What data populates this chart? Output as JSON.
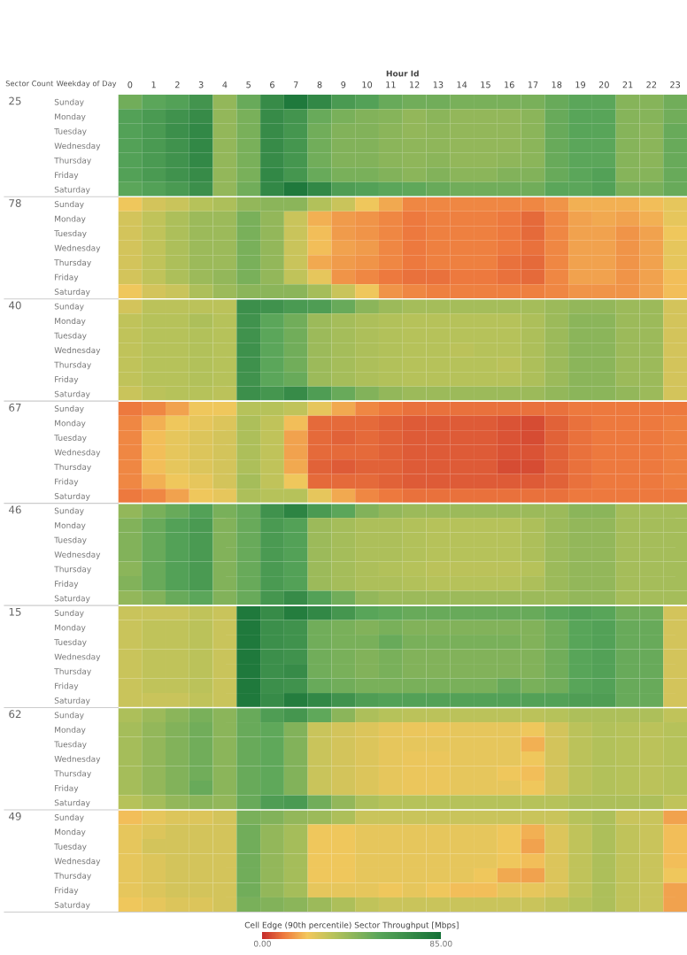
{
  "chart_data": {
    "type": "heatmap",
    "xlabel": "Hour Id",
    "ylabel": "Weekday of Day",
    "y2label": "Sector Count",
    "clabel": "Cell Edge (90th percentile) Sector Throughput [Mbps]",
    "clim": [
      0,
      85
    ],
    "cticks": [
      {
        "value": 0,
        "label": "0.00"
      },
      {
        "value": 85,
        "label": "85.00"
      }
    ],
    "categories": [
      "0",
      "1",
      "2",
      "3",
      "4",
      "5",
      "6",
      "7",
      "8",
      "9",
      "10",
      "11",
      "12",
      "13",
      "14",
      "15",
      "16",
      "17",
      "18",
      "19",
      "20",
      "21",
      "22",
      "23"
    ],
    "y_categories": [
      "Sunday",
      "Monday",
      "Tuesday",
      "Wednesday",
      "Thursday",
      "Friday",
      "Saturday",
      "Sunday",
      "Monday",
      "Tuesday",
      "Wednesday",
      "Thursday",
      "Friday",
      "Saturday",
      "Sunday",
      "Monday",
      "Tuesday",
      "Wednesday",
      "Thursday",
      "Friday",
      "Saturday",
      "Sunday",
      "Monday",
      "Tuesday",
      "Wednesday",
      "Thursday",
      "Friday",
      "Saturday",
      "Sunday",
      "Monday",
      "Tuesday",
      "Wednesday",
      "Thursday",
      "Friday",
      "Saturday",
      "Sunday",
      "Monday",
      "Tuesday",
      "Wednesday",
      "Thursday",
      "Friday",
      "Saturday",
      "Sunday",
      "Monday",
      "Tuesday",
      "Wednesday",
      "Thursday",
      "Friday",
      "Saturday",
      "Sunday",
      "Monday",
      "Tuesday",
      "Wednesday",
      "Thursday",
      "Friday",
      "Saturday"
    ],
    "y2_categories": [
      "25",
      null,
      null,
      null,
      null,
      null,
      null,
      "78",
      null,
      null,
      null,
      null,
      null,
      null,
      "40",
      null,
      null,
      null,
      null,
      null,
      null,
      "67",
      null,
      null,
      null,
      null,
      null,
      null,
      "46",
      null,
      null,
      null,
      null,
      null,
      null,
      "15",
      null,
      null,
      null,
      null,
      null,
      null,
      "62",
      null,
      null,
      null,
      null,
      null,
      null,
      "49",
      null,
      null,
      null,
      null,
      null,
      null
    ],
    "cells": [
      [
        50,
        55,
        58,
        65,
        42,
        52,
        70,
        80,
        72,
        62,
        58,
        52,
        50,
        50,
        48,
        48,
        48,
        48,
        52,
        55,
        55,
        45,
        45,
        50
      ],
      [
        58,
        62,
        66,
        70,
        42,
        48,
        70,
        65,
        52,
        48,
        46,
        45,
        42,
        44,
        42,
        42,
        42,
        44,
        52,
        56,
        56,
        45,
        45,
        50
      ],
      [
        58,
        62,
        68,
        72,
        42,
        48,
        70,
        64,
        50,
        46,
        46,
        44,
        42,
        43,
        42,
        42,
        42,
        44,
        52,
        56,
        56,
        45,
        44,
        52
      ],
      [
        58,
        62,
        66,
        72,
        42,
        48,
        70,
        64,
        50,
        46,
        46,
        44,
        43,
        43,
        42,
        42,
        42,
        44,
        52,
        55,
        55,
        45,
        44,
        52
      ],
      [
        58,
        62,
        66,
        72,
        42,
        48,
        70,
        64,
        50,
        46,
        46,
        44,
        43,
        44,
        42,
        42,
        43,
        44,
        52,
        55,
        55,
        45,
        44,
        52
      ],
      [
        58,
        62,
        66,
        70,
        42,
        48,
        72,
        64,
        52,
        48,
        48,
        46,
        44,
        46,
        44,
        44,
        46,
        46,
        52,
        55,
        58,
        45,
        45,
        52
      ],
      [
        55,
        58,
        62,
        68,
        42,
        50,
        72,
        80,
        72,
        60,
        58,
        55,
        54,
        52,
        50,
        50,
        50,
        50,
        55,
        55,
        58,
        48,
        48,
        52
      ],
      [
        22,
        28,
        30,
        34,
        36,
        42,
        44,
        44,
        35,
        30,
        22,
        17,
        12,
        12,
        12,
        12,
        12,
        12,
        14,
        18,
        18,
        18,
        20,
        24
      ],
      [
        28,
        32,
        36,
        40,
        40,
        48,
        42,
        30,
        18,
        15,
        14,
        12,
        10,
        11,
        11,
        11,
        10,
        8,
        12,
        16,
        17,
        16,
        18,
        24
      ],
      [
        28,
        32,
        36,
        40,
        40,
        48,
        42,
        30,
        20,
        15,
        14,
        12,
        10,
        11,
        11,
        11,
        10,
        8,
        12,
        16,
        16,
        14,
        16,
        22
      ],
      [
        28,
        32,
        36,
        40,
        40,
        48,
        42,
        30,
        20,
        16,
        15,
        12,
        10,
        11,
        11,
        11,
        10,
        9,
        12,
        16,
        16,
        14,
        16,
        24
      ],
      [
        28,
        32,
        36,
        40,
        40,
        48,
        42,
        30,
        17,
        15,
        14,
        12,
        10,
        11,
        11,
        11,
        9,
        8,
        12,
        16,
        16,
        14,
        16,
        24
      ],
      [
        28,
        32,
        36,
        40,
        42,
        48,
        42,
        32,
        24,
        14,
        12,
        10,
        9,
        9,
        10,
        10,
        9,
        8,
        12,
        16,
        16,
        14,
        16,
        20
      ],
      [
        22,
        28,
        30,
        36,
        40,
        44,
        44,
        44,
        38,
        30,
        22,
        14,
        12,
        11,
        11,
        11,
        11,
        11,
        12,
        14,
        14,
        14,
        16,
        20
      ],
      [
        28,
        33,
        33,
        33,
        33,
        68,
        66,
        62,
        60,
        52,
        44,
        40,
        38,
        38,
        38,
        38,
        38,
        38,
        40,
        42,
        42,
        40,
        40,
        28
      ],
      [
        32,
        34,
        34,
        36,
        34,
        66,
        55,
        50,
        40,
        38,
        36,
        35,
        34,
        34,
        34,
        34,
        34,
        36,
        40,
        44,
        44,
        40,
        40,
        28
      ],
      [
        32,
        34,
        34,
        35,
        34,
        66,
        55,
        50,
        40,
        38,
        36,
        35,
        34,
        34,
        34,
        34,
        34,
        36,
        40,
        44,
        44,
        40,
        40,
        28
      ],
      [
        32,
        34,
        34,
        35,
        34,
        67,
        55,
        50,
        40,
        38,
        36,
        35,
        34,
        34,
        33,
        34,
        34,
        36,
        40,
        44,
        44,
        40,
        40,
        28
      ],
      [
        32,
        34,
        34,
        35,
        34,
        67,
        55,
        50,
        40,
        38,
        36,
        35,
        34,
        34,
        34,
        34,
        33,
        36,
        40,
        44,
        44,
        40,
        40,
        28
      ],
      [
        32,
        34,
        34,
        35,
        34,
        66,
        55,
        52,
        40,
        38,
        36,
        35,
        34,
        34,
        34,
        34,
        34,
        36,
        40,
        44,
        44,
        40,
        40,
        28
      ],
      [
        30,
        33,
        34,
        34,
        33,
        68,
        64,
        70,
        60,
        52,
        46,
        42,
        40,
        40,
        40,
        40,
        40,
        40,
        42,
        44,
        44,
        42,
        40,
        28
      ],
      [
        10,
        12,
        16,
        22,
        22,
        34,
        34,
        32,
        24,
        17,
        12,
        10,
        9,
        9,
        9,
        9,
        9,
        9,
        9,
        10,
        10,
        10,
        10,
        10
      ],
      [
        12,
        18,
        22,
        24,
        26,
        36,
        32,
        20,
        8,
        8,
        8,
        7,
        6,
        6,
        6,
        6,
        5,
        4,
        7,
        9,
        10,
        10,
        10,
        11
      ],
      [
        12,
        20,
        24,
        26,
        28,
        36,
        32,
        16,
        8,
        7,
        8,
        7,
        6,
        6,
        6,
        6,
        5,
        4,
        7,
        9,
        10,
        10,
        10,
        11
      ],
      [
        12,
        20,
        24,
        26,
        28,
        36,
        32,
        16,
        8,
        8,
        8,
        7,
        6,
        6,
        6,
        6,
        5,
        5,
        7,
        9,
        10,
        10,
        10,
        11
      ],
      [
        12,
        20,
        24,
        26,
        28,
        36,
        32,
        17,
        7,
        6,
        7,
        7,
        6,
        6,
        6,
        6,
        4,
        4,
        7,
        9,
        10,
        10,
        10,
        11
      ],
      [
        12,
        18,
        22,
        24,
        28,
        38,
        32,
        22,
        8,
        8,
        8,
        7,
        6,
        6,
        6,
        6,
        6,
        6,
        7,
        9,
        10,
        10,
        10,
        11
      ],
      [
        10,
        12,
        16,
        22,
        24,
        36,
        34,
        34,
        24,
        17,
        12,
        10,
        9,
        9,
        9,
        9,
        9,
        9,
        9,
        10,
        10,
        10,
        10,
        10
      ],
      [
        42,
        48,
        52,
        58,
        48,
        52,
        66,
        74,
        62,
        55,
        46,
        42,
        40,
        40,
        40,
        40,
        40,
        40,
        40,
        44,
        44,
        38,
        38,
        38
      ],
      [
        46,
        52,
        58,
        62,
        46,
        52,
        62,
        58,
        40,
        38,
        36,
        36,
        35,
        34,
        34,
        34,
        34,
        36,
        40,
        42,
        42,
        38,
        38,
        38
      ],
      [
        46,
        52,
        58,
        62,
        46,
        52,
        62,
        58,
        40,
        38,
        36,
        36,
        35,
        34,
        34,
        34,
        34,
        36,
        40,
        42,
        42,
        38,
        38,
        38
      ],
      [
        46,
        52,
        58,
        62,
        46,
        52,
        62,
        58,
        40,
        38,
        36,
        36,
        35,
        34,
        34,
        34,
        34,
        36,
        40,
        42,
        42,
        38,
        38,
        38
      ],
      [
        44,
        52,
        58,
        62,
        46,
        52,
        62,
        58,
        40,
        38,
        36,
        35,
        34,
        33,
        33,
        33,
        33,
        34,
        40,
        42,
        42,
        38,
        38,
        38
      ],
      [
        46,
        52,
        58,
        62,
        46,
        52,
        62,
        58,
        40,
        38,
        36,
        36,
        35,
        34,
        34,
        34,
        34,
        36,
        40,
        42,
        42,
        38,
        38,
        38
      ],
      [
        42,
        46,
        52,
        55,
        46,
        52,
        64,
        70,
        58,
        50,
        42,
        40,
        40,
        40,
        40,
        40,
        40,
        40,
        40,
        42,
        42,
        38,
        38,
        38
      ],
      [
        30,
        30,
        30,
        32,
        30,
        80,
        70,
        78,
        72,
        64,
        56,
        54,
        52,
        52,
        52,
        52,
        52,
        52,
        55,
        58,
        56,
        50,
        50,
        28
      ],
      [
        30,
        32,
        32,
        33,
        30,
        80,
        68,
        66,
        50,
        48,
        46,
        48,
        46,
        46,
        46,
        46,
        46,
        46,
        50,
        56,
        58,
        52,
        52,
        28
      ],
      [
        30,
        32,
        32,
        33,
        30,
        80,
        68,
        66,
        50,
        48,
        48,
        52,
        48,
        48,
        48,
        48,
        48,
        46,
        50,
        56,
        58,
        52,
        52,
        28
      ],
      [
        30,
        32,
        32,
        33,
        30,
        80,
        68,
        66,
        50,
        48,
        46,
        48,
        46,
        46,
        46,
        46,
        46,
        46,
        50,
        56,
        58,
        52,
        52,
        28
      ],
      [
        30,
        32,
        32,
        33,
        30,
        80,
        68,
        70,
        50,
        48,
        46,
        48,
        46,
        46,
        46,
        46,
        46,
        46,
        50,
        56,
        58,
        52,
        52,
        28
      ],
      [
        30,
        32,
        32,
        33,
        30,
        80,
        68,
        66,
        52,
        50,
        48,
        48,
        48,
        48,
        48,
        48,
        52,
        48,
        50,
        56,
        58,
        52,
        52,
        28
      ],
      [
        30,
        30,
        30,
        32,
        30,
        80,
        70,
        78,
        72,
        66,
        60,
        58,
        58,
        58,
        58,
        58,
        58,
        58,
        58,
        60,
        60,
        52,
        52,
        28
      ],
      [
        36,
        40,
        44,
        48,
        44,
        52,
        60,
        64,
        54,
        44,
        36,
        34,
        33,
        33,
        33,
        33,
        33,
        33,
        34,
        36,
        36,
        36,
        36,
        32
      ],
      [
        38,
        42,
        46,
        50,
        44,
        52,
        54,
        46,
        30,
        28,
        26,
        24,
        23,
        23,
        24,
        24,
        24,
        22,
        28,
        33,
        35,
        34,
        33,
        34
      ],
      [
        38,
        42,
        46,
        50,
        44,
        52,
        54,
        46,
        30,
        28,
        26,
        24,
        24,
        24,
        24,
        24,
        24,
        18,
        28,
        33,
        35,
        34,
        33,
        34
      ],
      [
        38,
        42,
        46,
        50,
        44,
        52,
        54,
        46,
        30,
        28,
        26,
        24,
        23,
        23,
        24,
        24,
        24,
        22,
        28,
        33,
        35,
        34,
        33,
        34
      ],
      [
        38,
        42,
        46,
        50,
        44,
        52,
        54,
        46,
        30,
        28,
        26,
        24,
        23,
        23,
        24,
        24,
        22,
        20,
        28,
        33,
        35,
        34,
        33,
        34
      ],
      [
        38,
        42,
        46,
        52,
        44,
        52,
        54,
        46,
        30,
        28,
        26,
        24,
        23,
        23,
        24,
        24,
        24,
        22,
        28,
        33,
        35,
        34,
        33,
        34
      ],
      [
        34,
        38,
        42,
        44,
        42,
        52,
        60,
        62,
        50,
        42,
        36,
        34,
        34,
        34,
        34,
        34,
        34,
        34,
        34,
        36,
        36,
        36,
        36,
        32
      ],
      [
        20,
        24,
        26,
        26,
        28,
        48,
        46,
        42,
        40,
        36,
        30,
        30,
        30,
        30,
        30,
        30,
        30,
        30,
        30,
        34,
        36,
        30,
        30,
        16
      ],
      [
        24,
        26,
        28,
        28,
        28,
        50,
        42,
        38,
        22,
        22,
        24,
        24,
        24,
        24,
        24,
        24,
        22,
        18,
        26,
        32,
        36,
        32,
        30,
        20
      ],
      [
        24,
        28,
        28,
        28,
        28,
        50,
        42,
        38,
        22,
        22,
        24,
        24,
        24,
        24,
        24,
        24,
        22,
        16,
        26,
        32,
        36,
        32,
        30,
        20
      ],
      [
        24,
        26,
        28,
        28,
        28,
        50,
        42,
        38,
        22,
        22,
        24,
        24,
        24,
        24,
        24,
        24,
        22,
        20,
        26,
        32,
        36,
        32,
        30,
        20
      ],
      [
        24,
        26,
        28,
        28,
        28,
        50,
        42,
        38,
        22,
        22,
        24,
        24,
        24,
        24,
        24,
        22,
        17,
        16,
        26,
        32,
        36,
        32,
        30,
        22
      ],
      [
        24,
        26,
        28,
        28,
        28,
        50,
        42,
        38,
        24,
        24,
        24,
        22,
        24,
        22,
        20,
        20,
        24,
        24,
        26,
        32,
        36,
        32,
        30,
        16
      ],
      [
        22,
        24,
        26,
        26,
        28,
        48,
        46,
        44,
        40,
        36,
        32,
        30,
        30,
        30,
        30,
        30,
        30,
        30,
        32,
        34,
        36,
        32,
        30,
        16
      ]
    ]
  }
}
